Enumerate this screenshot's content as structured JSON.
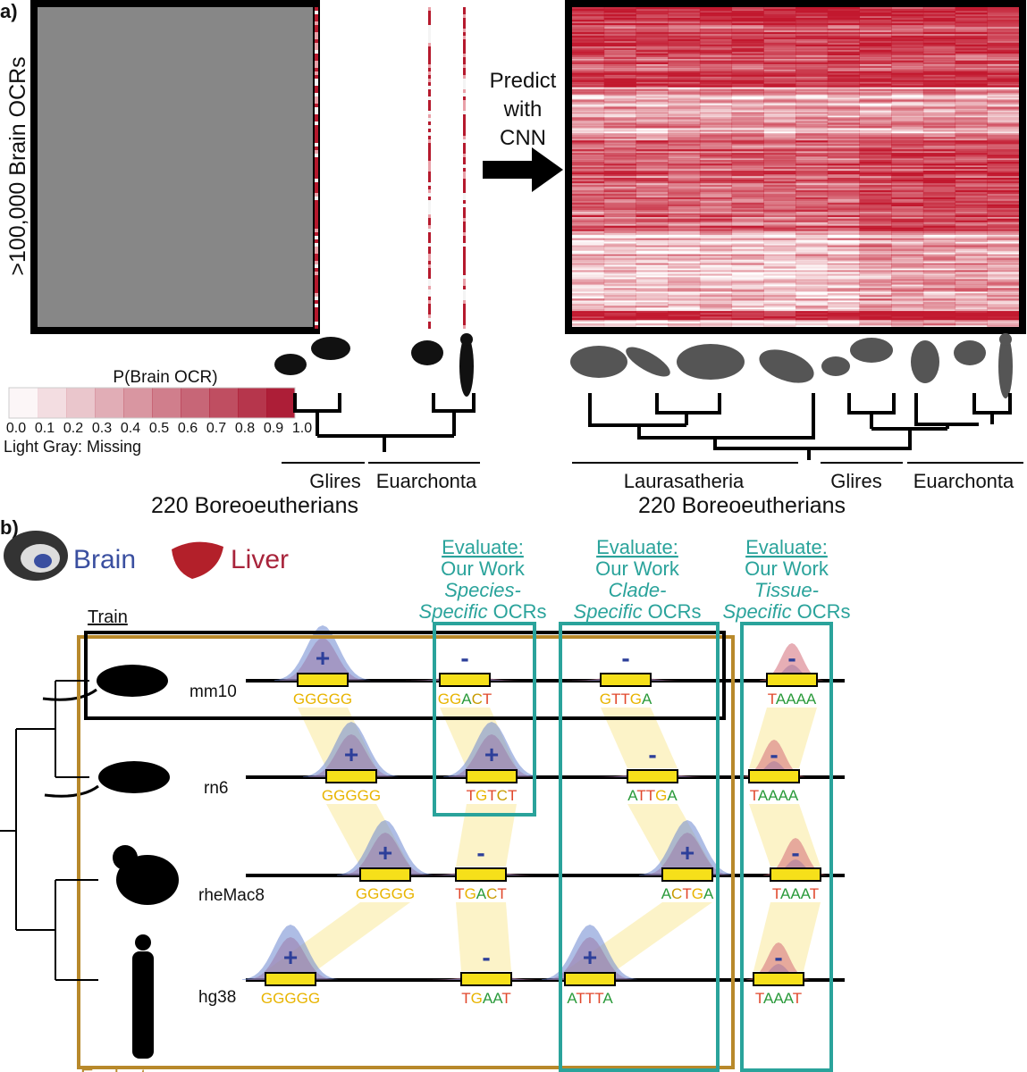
{
  "panel_a": {
    "label": "a)",
    "y_axis_label": ">100,000 Brain OCRs",
    "arrow_label": [
      "Predict",
      "with",
      "CNN"
    ],
    "colorbar": {
      "title": "P(Brain OCR)",
      "ticks": [
        "0.0",
        "0.1",
        "0.2",
        "0.3",
        "0.4",
        "0.5",
        "0.6",
        "0.7",
        "0.8",
        "0.9",
        "1.0"
      ]
    },
    "missing_note": "Light Gray: Missing",
    "left_clades": [
      "Glires",
      "Euarchonta"
    ],
    "left_footer": "220 Boreoeutherians",
    "right_clades": [
      "Laurasatheria",
      "Glires",
      "Euarchonta"
    ],
    "right_footer": "220 Boreoeutherians"
  },
  "panel_b": {
    "label": "b)",
    "legend": [
      "Brain",
      "Liver"
    ],
    "evaluations": [
      {
        "heading": "Evaluate:",
        "subheading": "Our Work",
        "italic1": "Species-",
        "italic2": "Specific",
        "suffix": "OCRs"
      },
      {
        "heading": "Evaluate:",
        "subheading": "Our Work",
        "italic1": "Clade-",
        "italic2": "Specific",
        "suffix": "OCRs"
      },
      {
        "heading": "Evaluate:",
        "subheading": "Our Work",
        "italic1": "Tissue-",
        "italic2": "Specific",
        "suffix": "OCRs"
      }
    ],
    "train_label": "Train",
    "evaluate_label": "Evaluate",
    "species": [
      {
        "name": "mm10",
        "sites": [
          {
            "sign": "+",
            "motif": "GGGGG"
          },
          {
            "sign": "-",
            "motif": "GGACT"
          },
          {
            "sign": "-",
            "motif": "GTTGA"
          },
          {
            "sign": "-",
            "motif": "TAAAA"
          }
        ]
      },
      {
        "name": "rn6",
        "sites": [
          {
            "sign": "+",
            "motif": "GGGGG"
          },
          {
            "sign": "+",
            "motif": "TGTCT"
          },
          {
            "sign": "-",
            "motif": "ATTGA"
          },
          {
            "sign": "-",
            "motif": "TAAAA"
          }
        ]
      },
      {
        "name": "rheMac8",
        "sites": [
          {
            "sign": "+",
            "motif": "GGGGG"
          },
          {
            "sign": "-",
            "motif": "TGACT"
          },
          {
            "sign": "+",
            "motif": "ACTGA"
          },
          {
            "sign": "-",
            "motif": "TAAAT"
          }
        ]
      },
      {
        "name": "hg38",
        "sites": [
          {
            "sign": "+",
            "motif": "GGGGG"
          },
          {
            "sign": "-",
            "motif": "TGAAT"
          },
          {
            "sign": "+",
            "motif": "ATTTA"
          },
          {
            "sign": "-",
            "motif": "TAAAT"
          }
        ]
      }
    ]
  }
}
